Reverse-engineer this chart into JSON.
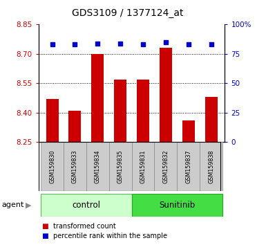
{
  "title": "GDS3109 / 1377124_at",
  "categories": [
    "GSM159830",
    "GSM159833",
    "GSM159834",
    "GSM159835",
    "GSM159831",
    "GSM159832",
    "GSM159837",
    "GSM159838"
  ],
  "bar_values": [
    8.47,
    8.41,
    8.7,
    8.57,
    8.57,
    8.73,
    8.36,
    8.48
  ],
  "percentile_values": [
    83,
    83,
    84,
    84,
    83,
    85,
    83,
    83
  ],
  "bar_color": "#cc0000",
  "dot_color": "#0000cc",
  "ylim_left": [
    8.25,
    8.85
  ],
  "ylim_right": [
    0,
    100
  ],
  "yticks_left": [
    8.25,
    8.4,
    8.55,
    8.7,
    8.85
  ],
  "yticks_right": [
    0,
    25,
    50,
    75,
    100
  ],
  "ytick_labels_right": [
    "0",
    "25",
    "50",
    "75",
    "100%"
  ],
  "grid_values": [
    8.4,
    8.55,
    8.7
  ],
  "control_label": "control",
  "sunitinib_label": "Sunitinib",
  "agent_label": "agent",
  "legend_bar_label": "transformed count",
  "legend_dot_label": "percentile rank within the sample",
  "control_color": "#ccffcc",
  "sunitinib_color": "#44dd44",
  "bar_bottom": 8.25,
  "background_color": "#ffffff",
  "tick_label_color_left": "#cc0000",
  "tick_label_color_right": "#0000cc",
  "plot_bg": "#ffffff",
  "label_box_color": "#cccccc",
  "label_box_edge": "#888888"
}
